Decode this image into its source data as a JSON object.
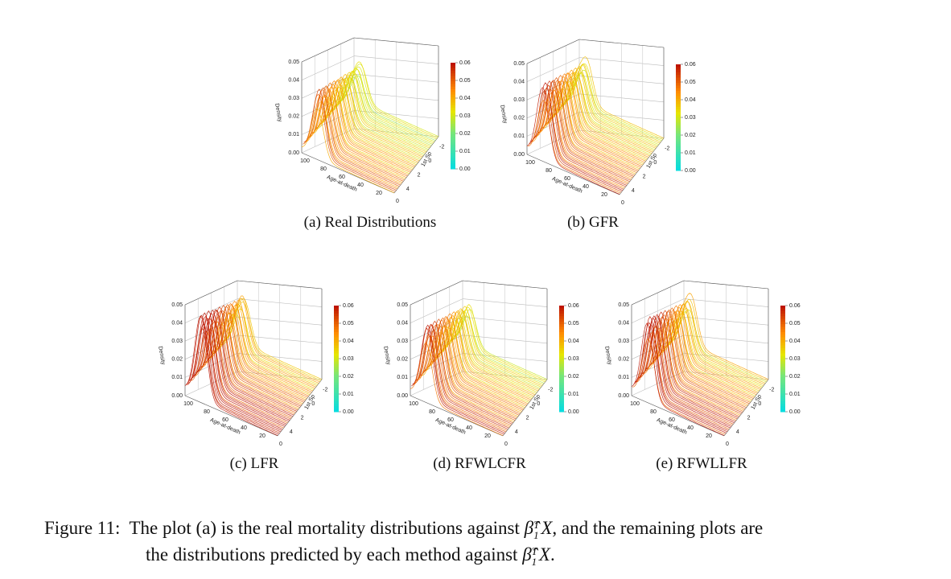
{
  "axes": {
    "z_label": "Density",
    "z_ticks": [
      "0.00",
      "0.01",
      "0.02",
      "0.03",
      "0.04",
      "0.05"
    ],
    "x_label": "Age-at-death",
    "x_ticks": [
      "100",
      "80",
      "60",
      "40",
      "20",
      "0"
    ],
    "y_label": "1st Sp",
    "y_ticks": [
      "-2",
      "0",
      "2",
      "4"
    ],
    "colorbar_ticks": [
      "0.00",
      "0.01",
      "0.02",
      "0.03",
      "0.04",
      "0.05",
      "0.06"
    ]
  },
  "panels": [
    {
      "caption": "(a) Real Distributions"
    },
    {
      "caption": "(b) GFR"
    },
    {
      "caption": "(c) LFR"
    },
    {
      "caption": "(d) RFWLCFR"
    },
    {
      "caption": "(e) RFWLLFR"
    }
  ],
  "caption": {
    "label": "Figure 11:",
    "text1": "The plot (a) is the real mortality distributions against",
    "text2": ", and the remaining plots are",
    "text3": "the distributions predicted by each method against",
    "text4": ".",
    "math": {
      "symbol": "β̂",
      "sup": "T",
      "sub": "1",
      "var": "X"
    }
  }
}
